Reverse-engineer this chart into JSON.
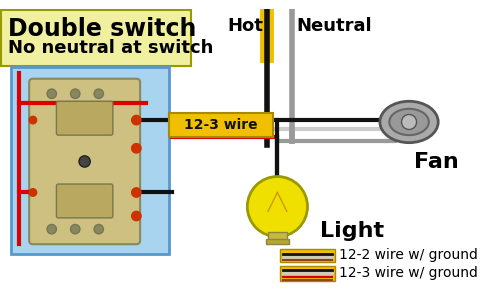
{
  "title": "Double switch",
  "subtitle": "No neutral at switch",
  "bg_color": "#ffffff",
  "title_bg": "#f0f0a0",
  "switch_box_bg": "#a8d4f0",
  "wire_colors": {
    "hot": "#dd0000",
    "neutral": "#999999",
    "black": "#111111",
    "ground": "#8B4513",
    "yellow_cable": "#f0c000",
    "white_wire": "#cccccc"
  },
  "labels": {
    "hot": "Hot",
    "neutral": "Neutral",
    "fan": "Fan",
    "light": "Light",
    "wire_label": "12-3 wire",
    "legend1": "12-2 wire w/ ground",
    "legend2": "12-3 wire w/ ground"
  },
  "font_sizes": {
    "title": 17,
    "subtitle": 13,
    "label": 13,
    "wire_label": 10,
    "legend": 10
  }
}
